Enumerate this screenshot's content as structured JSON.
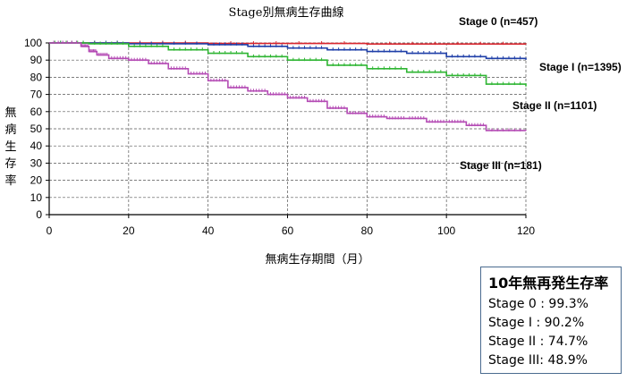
{
  "chart_data": {
    "type": "line",
    "title": "Stage別無病生存曲線",
    "xlabel": "無病生存期間（月）",
    "ylabel": "無病生存率",
    "xlim": [
      0,
      120
    ],
    "ylim": [
      0,
      100
    ],
    "xticks": [
      0,
      20,
      40,
      60,
      80,
      100,
      120
    ],
    "yticks": [
      0,
      10,
      20,
      30,
      40,
      50,
      60,
      70,
      80,
      90,
      100
    ],
    "grid": true,
    "series": [
      {
        "name": "Stage 0 (n=457)",
        "color": "#d9262e",
        "x": [
          0,
          40,
          80,
          120
        ],
        "y": [
          100,
          99.7,
          99.4,
          99.3
        ]
      },
      {
        "name": "Stage I (n=1395)",
        "color": "#1f3fa8",
        "x": [
          0,
          20,
          40,
          50,
          60,
          70,
          80,
          90,
          100,
          110,
          120
        ],
        "y": [
          100,
          99.5,
          99,
          98,
          97,
          96,
          95,
          94,
          92,
          91,
          90.2
        ]
      },
      {
        "name": "Stage II (n=1101)",
        "color": "#2fb533",
        "x": [
          0,
          10,
          20,
          30,
          40,
          50,
          60,
          70,
          80,
          90,
          100,
          110,
          120
        ],
        "y": [
          100,
          99.5,
          98,
          96,
          94,
          92,
          90,
          87,
          85,
          83,
          81,
          76,
          74.7
        ]
      },
      {
        "name": "Stage III (n=181)",
        "color": "#b44bb4",
        "x": [
          0,
          8,
          10,
          12,
          15,
          20,
          25,
          30,
          35,
          40,
          45,
          50,
          55,
          60,
          65,
          70,
          75,
          80,
          85,
          90,
          95,
          100,
          105,
          110,
          120
        ],
        "y": [
          100,
          98,
          95,
          93,
          91,
          90,
          88,
          85,
          82,
          78,
          74,
          72,
          70,
          68,
          66,
          62,
          59,
          57,
          56,
          56,
          54,
          54,
          52,
          49,
          48.9
        ]
      }
    ]
  },
  "summary": {
    "title": "10年無再発生存率",
    "rows": [
      "Stage 0 : 99.3%",
      "Stage I : 90.2%",
      "Stage II : 74.7%",
      "Stage III:  48.9%"
    ]
  }
}
